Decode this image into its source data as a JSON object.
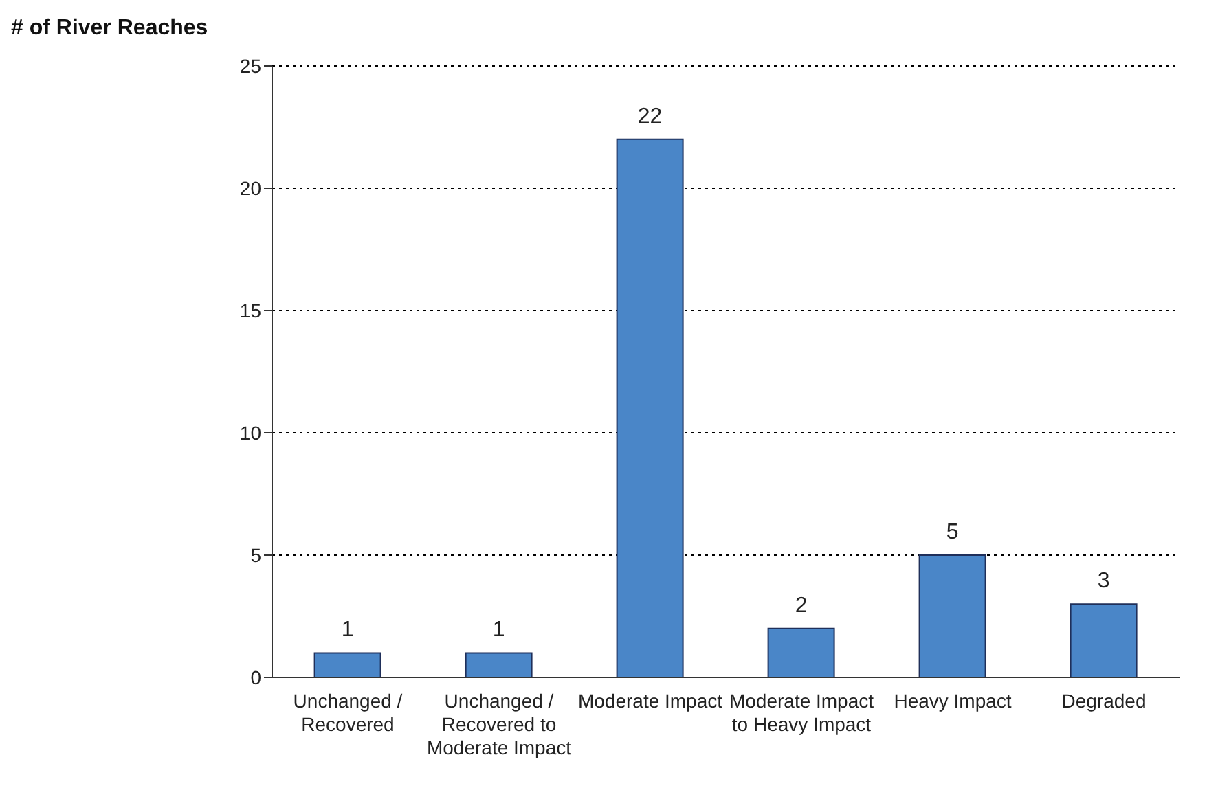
{
  "chart_data": {
    "type": "bar",
    "ylabel": "# of River Reaches",
    "categories": [
      "Unchanged / Recovered",
      "Unchanged / Recovered to Moderate Impact",
      "Moderate Impact",
      "Moderate Impact to Heavy Impact",
      "Heavy Impact",
      "Degraded"
    ],
    "values": [
      1,
      1,
      22,
      2,
      5,
      3
    ],
    "color": "#4a86c8",
    "ylim": [
      0,
      25
    ],
    "yticks": [
      0,
      5,
      10,
      15,
      20,
      25
    ],
    "grid": "y",
    "data_labels": true
  }
}
